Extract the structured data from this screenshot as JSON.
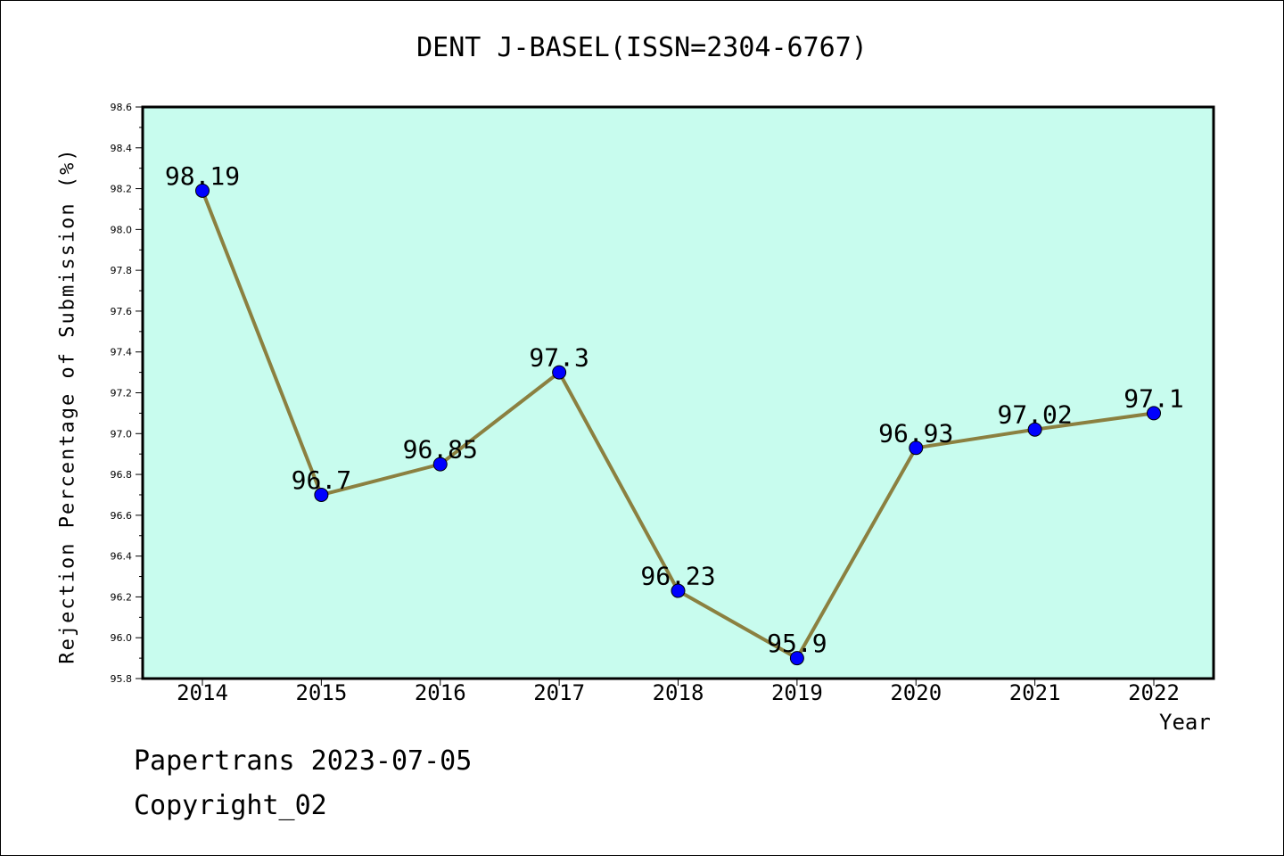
{
  "chart_data": {
    "type": "line",
    "title": "DENT J-BASEL(ISSN=2304-6767)",
    "xlabel": "Year",
    "ylabel": "Rejection Percentage of Submission (%)",
    "categories": [
      "2014",
      "2015",
      "2016",
      "2017",
      "2018",
      "2019",
      "2020",
      "2021",
      "2022"
    ],
    "values": [
      98.19,
      96.7,
      96.85,
      97.3,
      96.23,
      95.9,
      96.93,
      97.02,
      97.1
    ],
    "data_labels": [
      "98.19",
      "96.7",
      "96.85",
      "97.3",
      "96.23",
      "95.9",
      "96.93",
      "97.02",
      "97.1"
    ],
    "ylim": [
      95.8,
      98.6
    ],
    "yticks": [
      "95.8",
      "96.0",
      "96.2",
      "96.4",
      "96.6",
      "96.8",
      "97.0",
      "97.2",
      "97.4",
      "97.6",
      "97.8",
      "98.0",
      "98.2",
      "98.4",
      "98.6"
    ],
    "grid": false,
    "colors": {
      "plot_background": "#c8fcee",
      "line": "#8b8040",
      "marker": "#0000ff"
    }
  },
  "footer": {
    "date_line": "Papertrans 2023-07-05",
    "copyright": "Copyright_02"
  }
}
